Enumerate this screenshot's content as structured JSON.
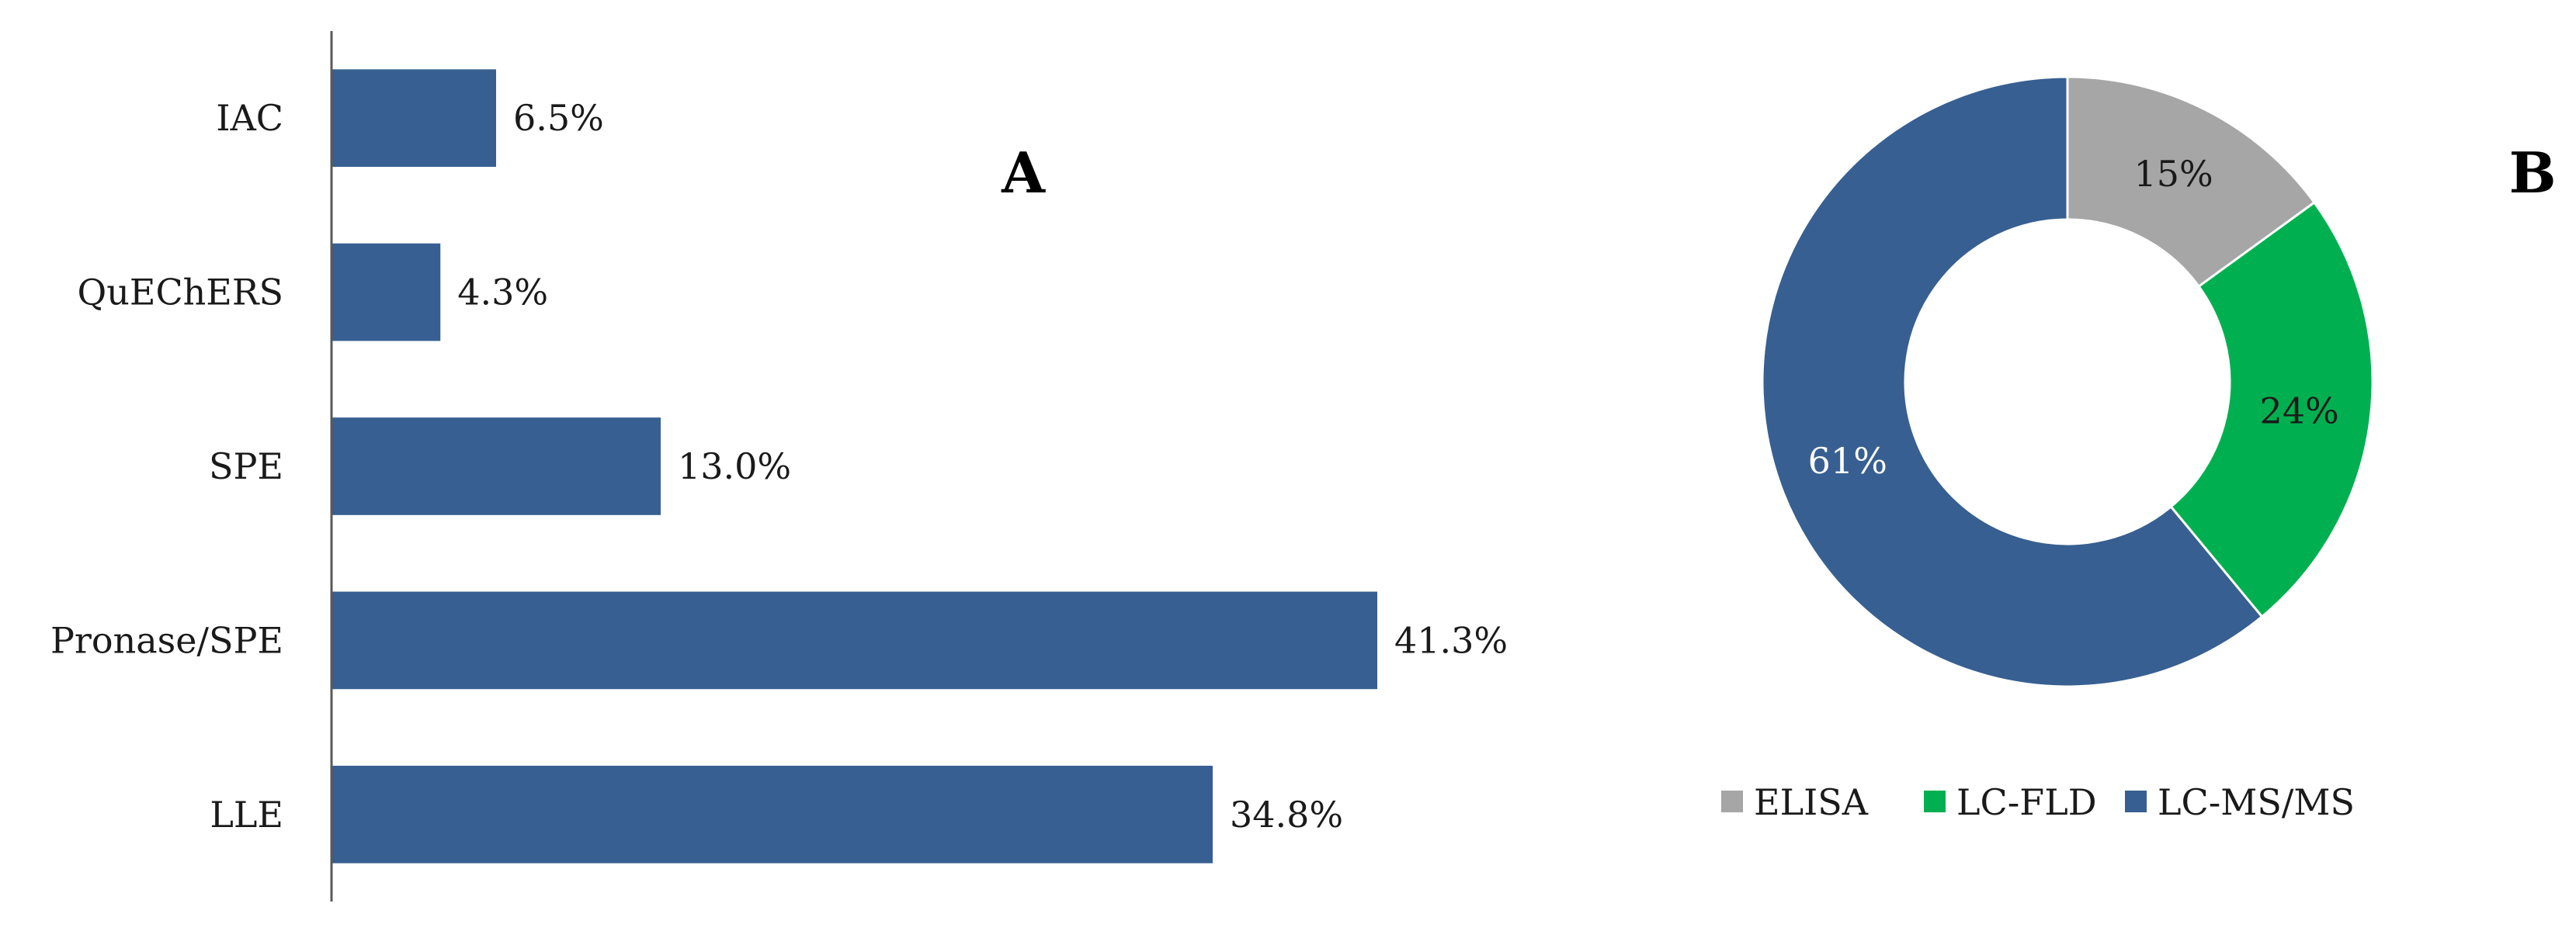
{
  "panels": {
    "a_label": "A",
    "b_label": "B"
  },
  "colors": {
    "bar": "#375F91",
    "ELISA": "#A6A6A6",
    "LC-FLD": "#00B050",
    "LC-MS/MS": "#375F91",
    "axis": "#595959"
  },
  "chart_data": [
    {
      "type": "bar",
      "orientation": "horizontal",
      "categories": [
        "IAC",
        "QuEChERS",
        "SPE",
        "Pronase/SPE",
        "LLE"
      ],
      "values": [
        6.5,
        4.3,
        13.0,
        41.3,
        34.8
      ],
      "value_labels": [
        "6.5%",
        "4.3%",
        "13.0%",
        "41.3%",
        "34.8%"
      ],
      "xlim": [
        0,
        45
      ],
      "grid": false
    },
    {
      "type": "pie",
      "donut": true,
      "labels": [
        "ELISA",
        "LC-FLD",
        "LC-MS/MS"
      ],
      "values": [
        15,
        24,
        61
      ],
      "value_labels": [
        "15%",
        "24%",
        "61%"
      ],
      "legend_position": "bottom"
    }
  ]
}
